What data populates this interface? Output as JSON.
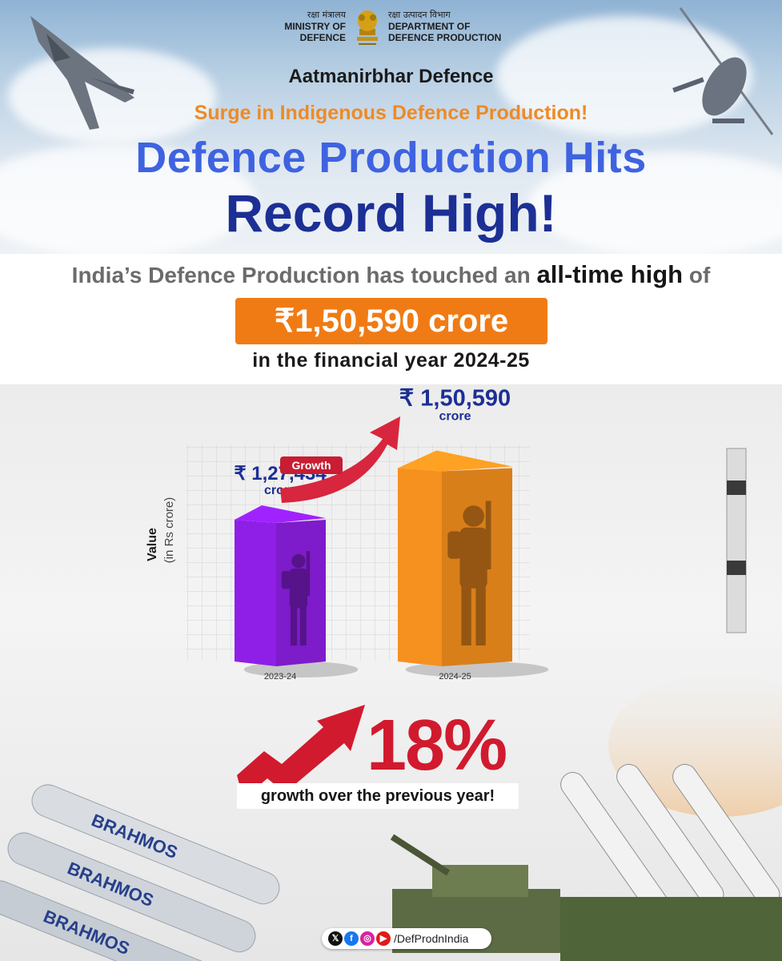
{
  "header": {
    "ministry_hindi": "रक्षा मंत्रालय",
    "ministry_english_line1": "MINISTRY OF",
    "ministry_english_line2": "DEFENCE",
    "dept_hindi": "रक्षा उत्पादन विभाग",
    "dept_english_line1": "DEPARTMENT OF",
    "dept_english_line2": "DEFENCE PRODUCTION",
    "subtitle": "Aatmanirbhar Defence",
    "tagline": "Surge in Indigenous Defence Production!",
    "headline_line1": "Defence Production Hits",
    "headline_line2": "Record High!"
  },
  "info": {
    "line1_prefix": "India’s Defence Production has touched an ",
    "line1_highlight": "all-time high",
    "line1_suffix": " of",
    "amount": "₹1,50,590 crore",
    "line3": "in the financial year 2024-25"
  },
  "chart_data": {
    "type": "bar",
    "categories": [
      "2023-24",
      "2024-25"
    ],
    "values": [
      127434,
      150590
    ],
    "value_labels": [
      "₹ 1,27,434",
      "₹ 1,50,590"
    ],
    "unit_label": "crore",
    "ylabel": "Value",
    "ylabel_unit": "(in Rs crore)",
    "annotation": "Growth",
    "bar_colors": [
      "#8f1fe6",
      "#f6901e"
    ],
    "ylim": [
      0,
      160000
    ]
  },
  "growth": {
    "percent": "18%",
    "text": "growth over the previous year!",
    "color": "#d11a2e"
  },
  "social": {
    "icons": [
      "x-icon",
      "facebook-icon",
      "instagram-icon",
      "youtube-icon"
    ],
    "handle": "/DefProdnIndia"
  },
  "colors": {
    "headline_blue": "#3f63e0",
    "headline_navy": "#1c2f95",
    "accent_orange": "#f07b14",
    "accent_red": "#d11a2e"
  }
}
